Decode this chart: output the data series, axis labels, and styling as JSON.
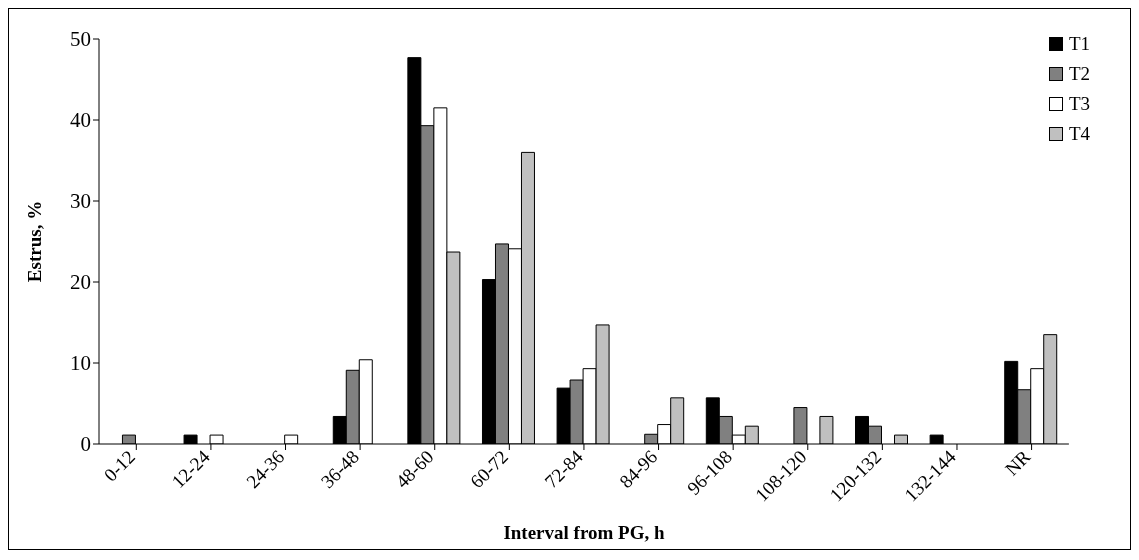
{
  "chart_data": {
    "type": "bar",
    "xlabel": "Interval from PG, h",
    "ylabel": "Estrus, %",
    "categories": [
      "0-12",
      "12-24",
      "24-36",
      "36-48",
      "48-60",
      "60-72",
      "72-84",
      "84-96",
      "96-108",
      "108-120",
      "120-132",
      "132-144",
      "NR"
    ],
    "series": [
      {
        "name": "T1",
        "color": "#000000",
        "values": [
          0,
          1.1,
          0,
          3.4,
          47.7,
          20.3,
          6.9,
          0,
          5.7,
          0,
          3.4,
          1.1,
          10.2
        ]
      },
      {
        "name": "T2",
        "color": "#808080",
        "values": [
          1.1,
          0,
          0,
          9.1,
          39.3,
          24.7,
          7.9,
          1.2,
          3.4,
          4.5,
          2.2,
          0,
          6.7
        ]
      },
      {
        "name": "T3",
        "color": "#ffffff",
        "values": [
          0,
          1.1,
          1.1,
          10.4,
          41.5,
          24.1,
          9.3,
          2.4,
          1.1,
          0,
          0,
          0,
          9.3
        ]
      },
      {
        "name": "T4",
        "color": "#c0c0c0",
        "values": [
          0,
          0,
          0,
          0,
          23.7,
          36,
          14.7,
          5.7,
          2.2,
          3.4,
          1.1,
          0,
          13.5
        ]
      }
    ],
    "ylim": [
      0,
      50
    ],
    "yticks": [
      0,
      10,
      20,
      30,
      40,
      50
    ],
    "grid": false,
    "legend": "top right"
  }
}
